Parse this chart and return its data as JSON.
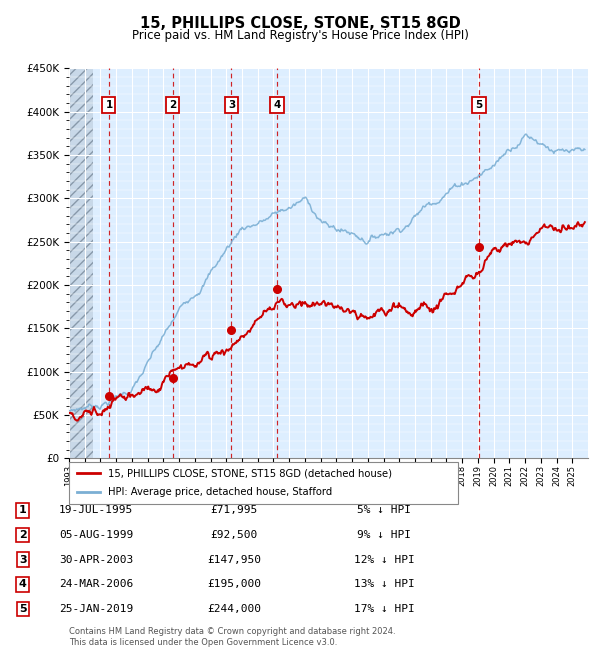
{
  "title": "15, PHILLIPS CLOSE, STONE, ST15 8GD",
  "subtitle": "Price paid vs. HM Land Registry's House Price Index (HPI)",
  "ylim": [
    0,
    450000
  ],
  "sales": [
    {
      "num": 1,
      "date_x": 1995.54,
      "price": 71995
    },
    {
      "num": 2,
      "date_x": 1999.59,
      "price": 92500
    },
    {
      "num": 3,
      "date_x": 2003.33,
      "price": 147950
    },
    {
      "num": 4,
      "date_x": 2006.23,
      "price": 195000
    },
    {
      "num": 5,
      "date_x": 2019.07,
      "price": 244000
    }
  ],
  "sale_color": "#cc0000",
  "hpi_color": "#7bafd4",
  "legend_label_sale": "15, PHILLIPS CLOSE, STONE, ST15 8GD (detached house)",
  "legend_label_hpi": "HPI: Average price, detached house, Stafford",
  "table_rows": [
    [
      "1",
      "19-JUL-1995",
      "£71,995",
      "5% ↓ HPI"
    ],
    [
      "2",
      "05-AUG-1999",
      "£92,500",
      "9% ↓ HPI"
    ],
    [
      "3",
      "30-APR-2003",
      "£147,950",
      "12% ↓ HPI"
    ],
    [
      "4",
      "24-MAR-2006",
      "£195,000",
      "13% ↓ HPI"
    ],
    [
      "5",
      "25-JAN-2019",
      "£244,000",
      "17% ↓ HPI"
    ]
  ],
  "footnote": "Contains HM Land Registry data © Crown copyright and database right 2024.\nThis data is licensed under the Open Government Licence v3.0.",
  "xmin": 1993,
  "xmax": 2026,
  "hatch_end": 1994.5,
  "chart_bg": "#ddeeff",
  "hatch_color": "#b0bfcf"
}
